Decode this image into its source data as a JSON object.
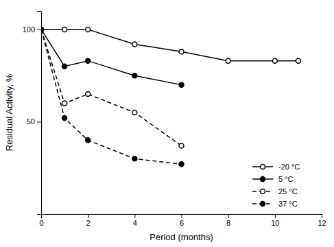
{
  "chart_data": {
    "type": "line",
    "xlabel": "Period (months)",
    "ylabel": "Residual Activity, %",
    "series": [
      {
        "name": "-20 °C",
        "x": [
          0,
          1,
          2,
          4,
          6,
          8,
          10,
          11
        ],
        "values": [
          100,
          100,
          100,
          92,
          88,
          83,
          83,
          83
        ],
        "color": "#000000",
        "marker": "circle-open",
        "line_style": "solid"
      },
      {
        "name": "5 °C",
        "x": [
          0,
          1,
          2,
          4,
          6
        ],
        "values": [
          100,
          80,
          83,
          75,
          70
        ],
        "color": "#000000",
        "marker": "circle",
        "line_style": "solid"
      },
      {
        "name": "25 °C",
        "x": [
          0,
          1,
          2,
          4,
          6
        ],
        "values": [
          100,
          60,
          65,
          55,
          37
        ],
        "color": "#000000",
        "marker": "circle-open",
        "line_style": "dashed"
      },
      {
        "name": "37 °C",
        "x": [
          0,
          1,
          2,
          4,
          6
        ],
        "values": [
          100,
          52,
          40,
          30,
          27
        ],
        "color": "#000000",
        "marker": "circle",
        "line_style": "dashed"
      }
    ],
    "xlim": [
      0,
      12
    ],
    "ylim": [
      0,
      110
    ],
    "xticks": [
      0,
      2,
      4,
      6,
      8,
      10,
      12
    ],
    "yticks": [
      50,
      100
    ],
    "legend": "lower right"
  }
}
